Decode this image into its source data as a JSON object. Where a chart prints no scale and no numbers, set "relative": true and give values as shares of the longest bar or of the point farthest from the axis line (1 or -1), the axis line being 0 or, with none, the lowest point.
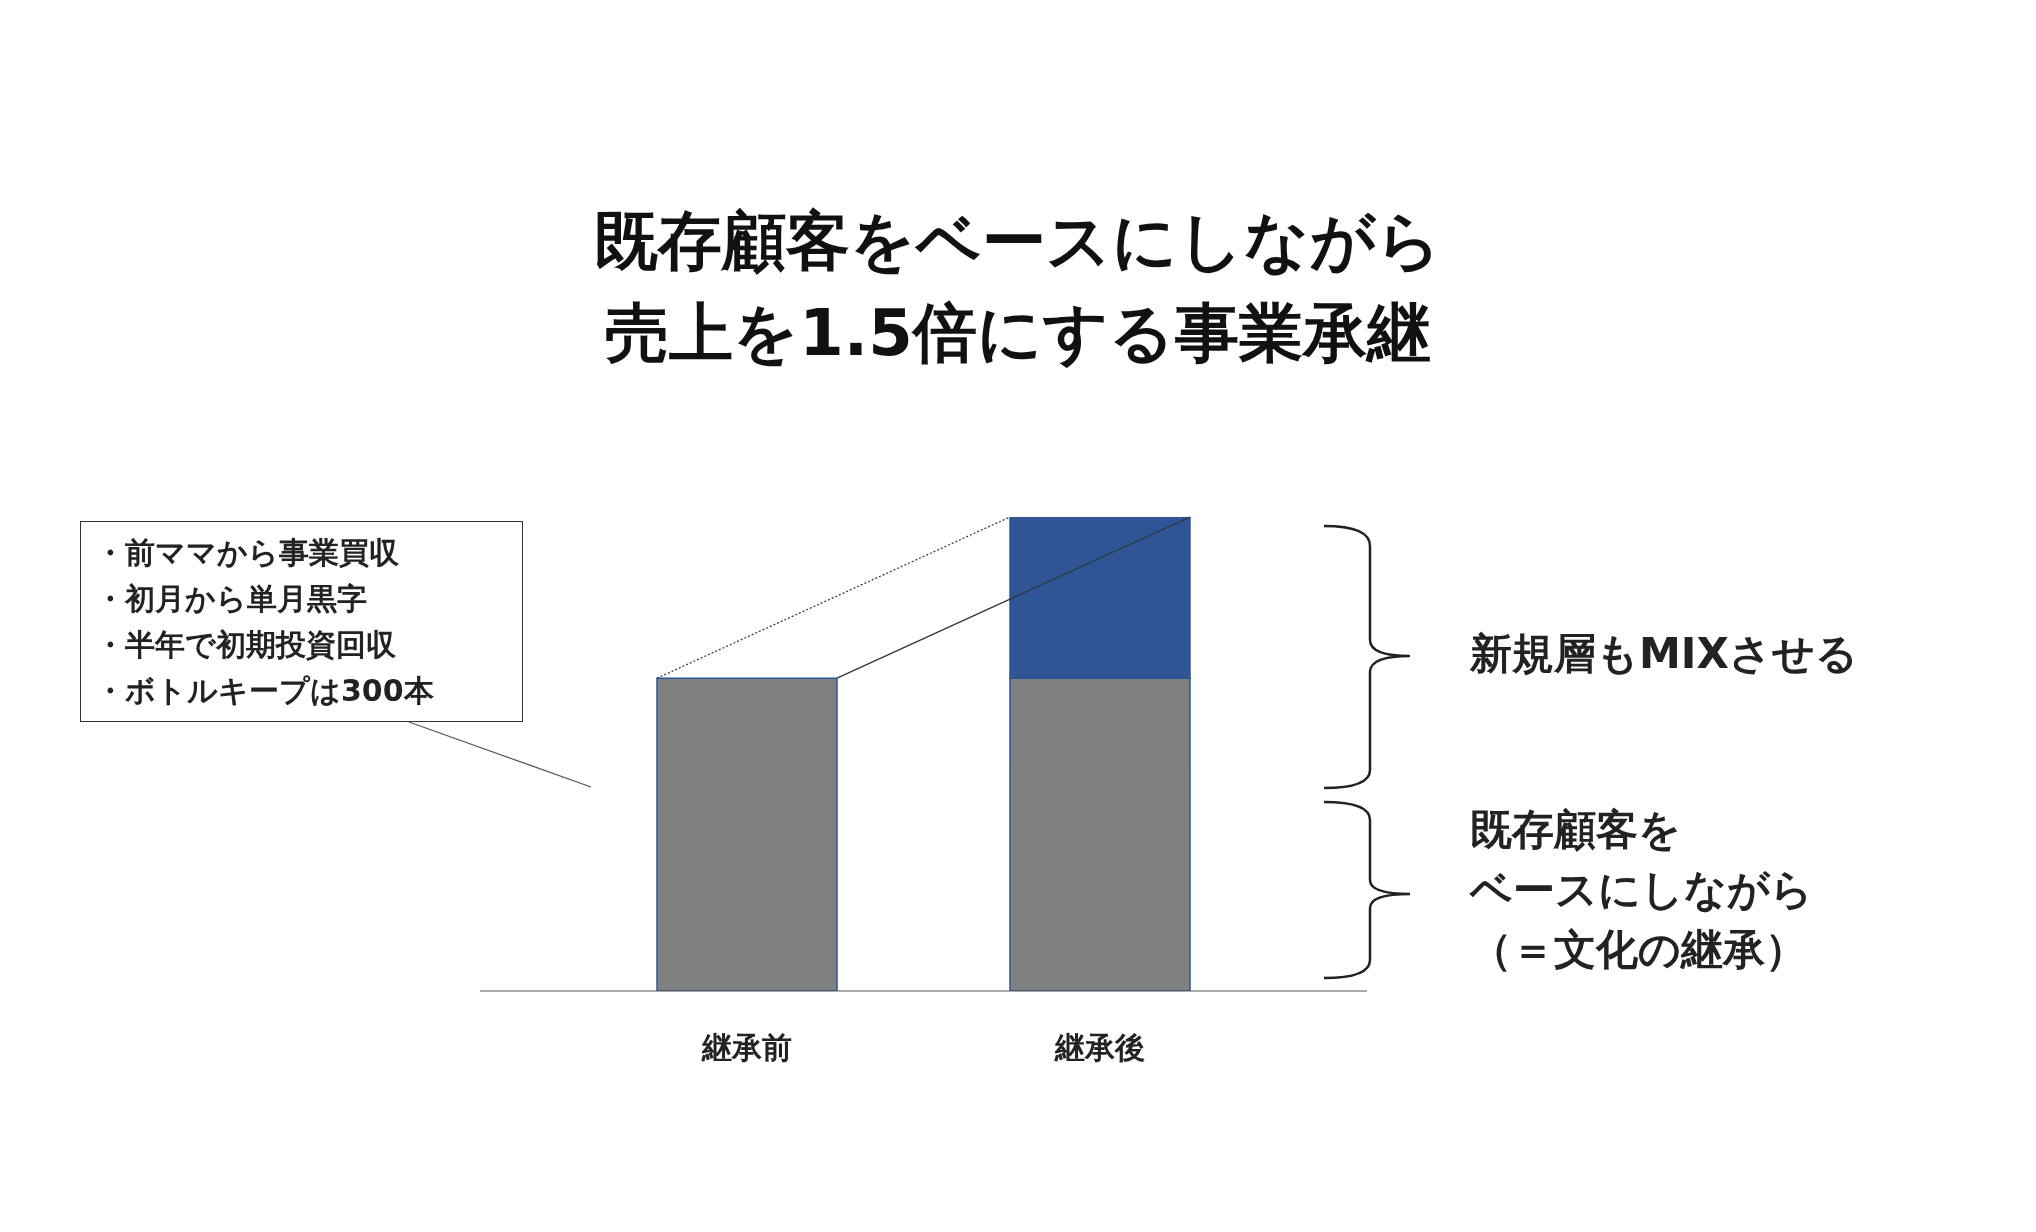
{
  "chart_data": {
    "type": "bar",
    "title": "既存顧客をベースにしながら売上を1.5倍にする事業承継",
    "categories": [
      "継承前",
      "継承後"
    ],
    "stacked": true,
    "relative": true,
    "legend": false,
    "grid": false,
    "series": [
      {
        "color": "#808080",
        "values": [
          0.66,
          0.66
        ]
      },
      {
        "color": "#2f5597",
        "values": [
          null,
          0.34
        ]
      }
    ],
    "annotations": [
      "・前ママから事業買収",
      "・初月から単月黒字",
      "・半年で初期投資回収",
      "・ボトルキープは300本",
      "新規層もMIXさせる",
      "既存顧客を",
      "ベースにしながら",
      "（＝文化の継承）"
    ]
  }
}
